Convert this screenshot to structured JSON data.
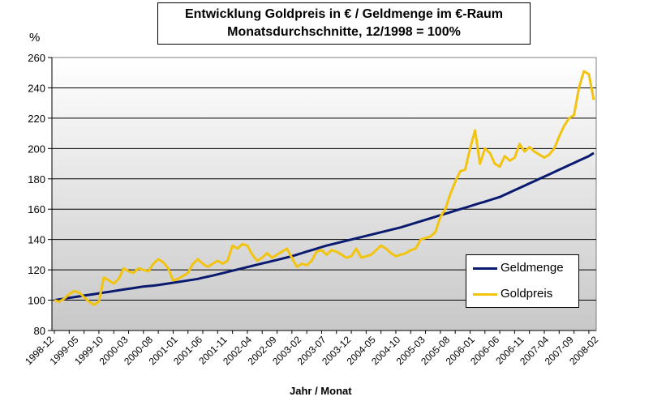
{
  "chart_data": {
    "type": "line",
    "title_line1": "Entwicklung Goldpreis in € / Geldmenge im €-Raum",
    "title_line2": "Monatsdurchschnitte,  12/1998 = 100%",
    "ylabel": "%",
    "xlabel": "Jahr / Monat",
    "ylim": [
      80,
      260
    ],
    "yticks": [
      80,
      100,
      120,
      140,
      160,
      180,
      200,
      220,
      240,
      260
    ],
    "grid": true,
    "legend_position": "bottom-right",
    "x_tick_labels": [
      "1998-12",
      "1999-05",
      "1999-10",
      "2000-03",
      "2000-08",
      "2001-01",
      "2001-06",
      "2001-11",
      "2002-04",
      "2002-09",
      "2003-02",
      "2003-07",
      "2003-12",
      "2004-05",
      "2004-10",
      "2005-03",
      "2005-08",
      "2006-01",
      "2006-06",
      "2006-11",
      "2007-04",
      "2007-09",
      "2008-02"
    ],
    "series": [
      {
        "name": "Geldmenge",
        "color": "#0a1a6e",
        "values": [
          100,
          100.5,
          101,
          101.5,
          102,
          102.5,
          103,
          103.5,
          104,
          104.5,
          105,
          105.5,
          106,
          106.5,
          107,
          107.5,
          108,
          108.5,
          109,
          109.3,
          109.6,
          110,
          110.5,
          111,
          111.5,
          112,
          112.5,
          113,
          113.5,
          114,
          114.8,
          115.5,
          116.2,
          117,
          117.8,
          118.6,
          119.4,
          120.2,
          121,
          121.8,
          122.6,
          123.4,
          124.2,
          125,
          125.8,
          126.6,
          127.4,
          128.2,
          129,
          130,
          131,
          132,
          133,
          134,
          135,
          136,
          136.8,
          137.6,
          138.4,
          139.2,
          140,
          140.8,
          141.6,
          142.4,
          143.2,
          144,
          144.8,
          145.6,
          146.4,
          147.2,
          148,
          149,
          150,
          151,
          152,
          153,
          154,
          155,
          156,
          157,
          158,
          159,
          160,
          161,
          162,
          163,
          164,
          165,
          166,
          167,
          168,
          169.5,
          171,
          172.5,
          174,
          175.5,
          177,
          178.5,
          180,
          181.5,
          183,
          184.5,
          186,
          187.5,
          189,
          190.5,
          192,
          193.5,
          195,
          197
        ]
      },
      {
        "name": "Goldpreis",
        "color": "#f2c40f",
        "values": [
          100,
          99,
          101,
          104,
          106,
          105,
          102,
          99,
          97,
          99,
          115,
          113,
          111,
          114,
          121,
          119,
          118,
          121,
          120,
          119,
          124,
          127,
          125,
          121,
          113,
          114,
          116,
          118,
          124,
          127,
          124,
          122,
          124,
          126,
          124,
          126,
          136,
          134,
          137,
          136,
          130,
          126,
          128,
          131,
          128,
          130,
          132,
          134,
          128,
          122,
          124,
          123,
          126,
          132,
          133,
          130,
          133,
          132,
          130,
          128,
          129,
          134,
          128,
          129,
          130,
          133,
          136,
          134,
          131,
          129,
          130,
          131,
          133,
          134,
          140,
          141,
          142,
          145,
          155,
          160,
          170,
          178,
          185,
          186,
          200,
          212,
          190,
          200,
          197,
          190,
          188,
          195,
          192,
          194,
          203,
          198,
          201,
          198,
          196,
          194,
          196,
          200,
          208,
          215,
          220,
          222,
          240,
          251,
          249,
          232
        ]
      }
    ]
  }
}
